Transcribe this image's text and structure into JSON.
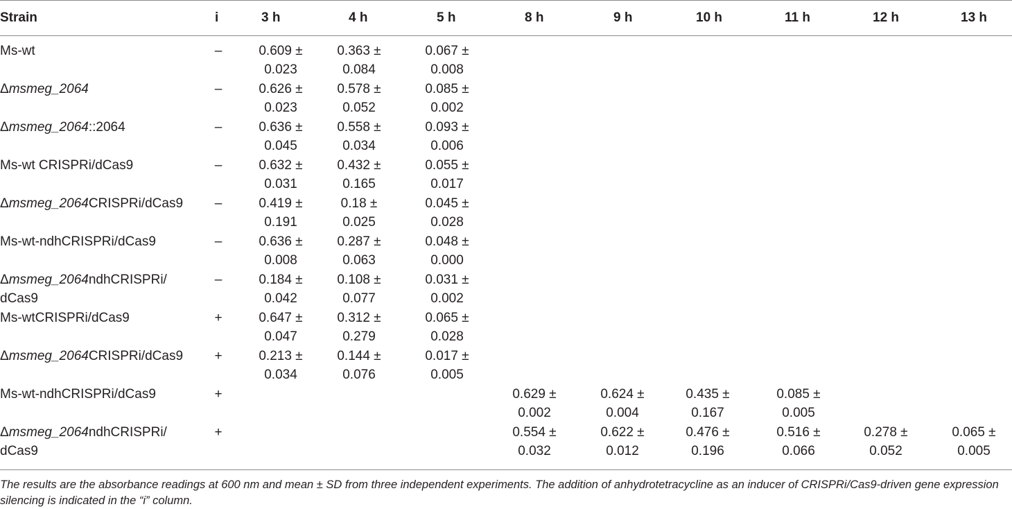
{
  "table": {
    "headers": [
      "Strain",
      "i",
      "3 h",
      "4 h",
      "5 h",
      "8 h",
      "9 h",
      "10 h",
      "11 h",
      "12 h",
      "13 h"
    ],
    "rows": [
      {
        "strain_pre": "Ms-wt",
        "strain_ital": "",
        "strain_post": "",
        "strain_line2": "",
        "i": "–",
        "values": [
          [
            "0.609 ±",
            "0.023"
          ],
          [
            "0.363 ±",
            "0.084"
          ],
          [
            "0.067 ±",
            "0.008"
          ],
          [
            "",
            ""
          ],
          [
            "",
            ""
          ],
          [
            "",
            ""
          ],
          [
            "",
            ""
          ],
          [
            "",
            ""
          ],
          [
            "",
            ""
          ]
        ]
      },
      {
        "strain_pre": "Δ",
        "strain_ital": "msmeg_2064",
        "strain_post": "",
        "strain_line2": "",
        "i": "–",
        "values": [
          [
            "0.626 ±",
            "0.023"
          ],
          [
            "0.578 ±",
            "0.052"
          ],
          [
            "0.085 ±",
            "0.002"
          ],
          [
            "",
            ""
          ],
          [
            "",
            ""
          ],
          [
            "",
            ""
          ],
          [
            "",
            ""
          ],
          [
            "",
            ""
          ],
          [
            "",
            ""
          ]
        ]
      },
      {
        "strain_pre": "Δ",
        "strain_ital": "msmeg_2064",
        "strain_post": "::2064",
        "strain_line2": "",
        "i": "–",
        "values": [
          [
            "0.636 ±",
            "0.045"
          ],
          [
            "0.558 ±",
            "0.034"
          ],
          [
            "0.093 ±",
            "0.006"
          ],
          [
            "",
            ""
          ],
          [
            "",
            ""
          ],
          [
            "",
            ""
          ],
          [
            "",
            ""
          ],
          [
            "",
            ""
          ],
          [
            "",
            ""
          ]
        ]
      },
      {
        "strain_pre": "Ms-wt CRISPRi/dCas9",
        "strain_ital": "",
        "strain_post": "",
        "strain_line2": "",
        "i": "–",
        "values": [
          [
            "0.632 ±",
            "0.031"
          ],
          [
            "0.432 ±",
            "0.165"
          ],
          [
            "0.055 ±",
            "0.017"
          ],
          [
            "",
            ""
          ],
          [
            "",
            ""
          ],
          [
            "",
            ""
          ],
          [
            "",
            ""
          ],
          [
            "",
            ""
          ],
          [
            "",
            ""
          ]
        ]
      },
      {
        "strain_pre": "Δ",
        "strain_ital": "msmeg_2064",
        "strain_post": "CRISPRi/dCas9",
        "strain_line2": "",
        "i": "–",
        "values": [
          [
            "0.419 ±",
            "0.191"
          ],
          [
            "0.18 ±",
            "0.025"
          ],
          [
            "0.045 ±",
            "0.028"
          ],
          [
            "",
            ""
          ],
          [
            "",
            ""
          ],
          [
            "",
            ""
          ],
          [
            "",
            ""
          ],
          [
            "",
            ""
          ],
          [
            "",
            ""
          ]
        ]
      },
      {
        "strain_pre": "Ms-wt-ndhCRISPRi/dCas9",
        "strain_ital": "",
        "strain_post": "",
        "strain_line2": "",
        "i": "–",
        "values": [
          [
            "0.636 ±",
            "0.008"
          ],
          [
            "0.287 ±",
            "0.063"
          ],
          [
            "0.048 ±",
            "0.000"
          ],
          [
            "",
            ""
          ],
          [
            "",
            ""
          ],
          [
            "",
            ""
          ],
          [
            "",
            ""
          ],
          [
            "",
            ""
          ],
          [
            "",
            ""
          ]
        ]
      },
      {
        "strain_pre": "Δ",
        "strain_ital": "msmeg_2064",
        "strain_post": "ndhCRISPRi/",
        "strain_line2": "dCas9",
        "i": "–",
        "values": [
          [
            "0.184 ±",
            "0.042"
          ],
          [
            "0.108 ±",
            "0.077"
          ],
          [
            "0.031 ±",
            "0.002"
          ],
          [
            "",
            ""
          ],
          [
            "",
            ""
          ],
          [
            "",
            ""
          ],
          [
            "",
            ""
          ],
          [
            "",
            ""
          ],
          [
            "",
            ""
          ]
        ]
      },
      {
        "strain_pre": "Ms-wtCRISPRi/dCas9",
        "strain_ital": "",
        "strain_post": "",
        "strain_line2": "",
        "i": "+",
        "values": [
          [
            "0.647 ±",
            "0.047"
          ],
          [
            "0.312 ±",
            "0.279"
          ],
          [
            "0.065 ±",
            "0.028"
          ],
          [
            "",
            ""
          ],
          [
            "",
            ""
          ],
          [
            "",
            ""
          ],
          [
            "",
            ""
          ],
          [
            "",
            ""
          ],
          [
            "",
            ""
          ]
        ]
      },
      {
        "strain_pre": "Δ",
        "strain_ital": "msmeg_2064",
        "strain_post": "CRISPRi/dCas9",
        "strain_line2": "",
        "i": "+",
        "values": [
          [
            "0.213 ±",
            "0.034"
          ],
          [
            "0.144 ±",
            "0.076"
          ],
          [
            "0.017 ±",
            "0.005"
          ],
          [
            "",
            ""
          ],
          [
            "",
            ""
          ],
          [
            "",
            ""
          ],
          [
            "",
            ""
          ],
          [
            "",
            ""
          ],
          [
            "",
            ""
          ]
        ]
      },
      {
        "strain_pre": "Ms-wt-ndhCRISPRi/dCas9",
        "strain_ital": "",
        "strain_post": "",
        "strain_line2": "",
        "i": "+",
        "values": [
          [
            "",
            ""
          ],
          [
            "",
            ""
          ],
          [
            "",
            ""
          ],
          [
            "0.629 ±",
            "0.002"
          ],
          [
            "0.624 ±",
            "0.004"
          ],
          [
            "0.435 ±",
            "0.167"
          ],
          [
            "0.085 ±",
            "0.005"
          ],
          [
            "",
            ""
          ],
          [
            "",
            ""
          ]
        ]
      },
      {
        "strain_pre": "Δ",
        "strain_ital": "msmeg_2064",
        "strain_post": "ndhCRISPRi/",
        "strain_line2": "dCas9",
        "i": "+",
        "values": [
          [
            "",
            ""
          ],
          [
            "",
            ""
          ],
          [
            "",
            ""
          ],
          [
            "0.554 ±",
            "0.032"
          ],
          [
            "0.622 ±",
            "0.012"
          ],
          [
            "0.476 ±",
            "0.196"
          ],
          [
            "0.516 ±",
            "0.066"
          ],
          [
            "0.278 ±",
            "0.052"
          ],
          [
            "0.065 ±",
            "0.005"
          ]
        ]
      }
    ]
  },
  "footnote": "The results are the absorbance readings at 600 nm and mean ± SD from three independent experiments. The addition of anhydrotetracycline as an inducer of CRISPRi/Cas9-driven gene expression silencing is indicated in the “i” column."
}
